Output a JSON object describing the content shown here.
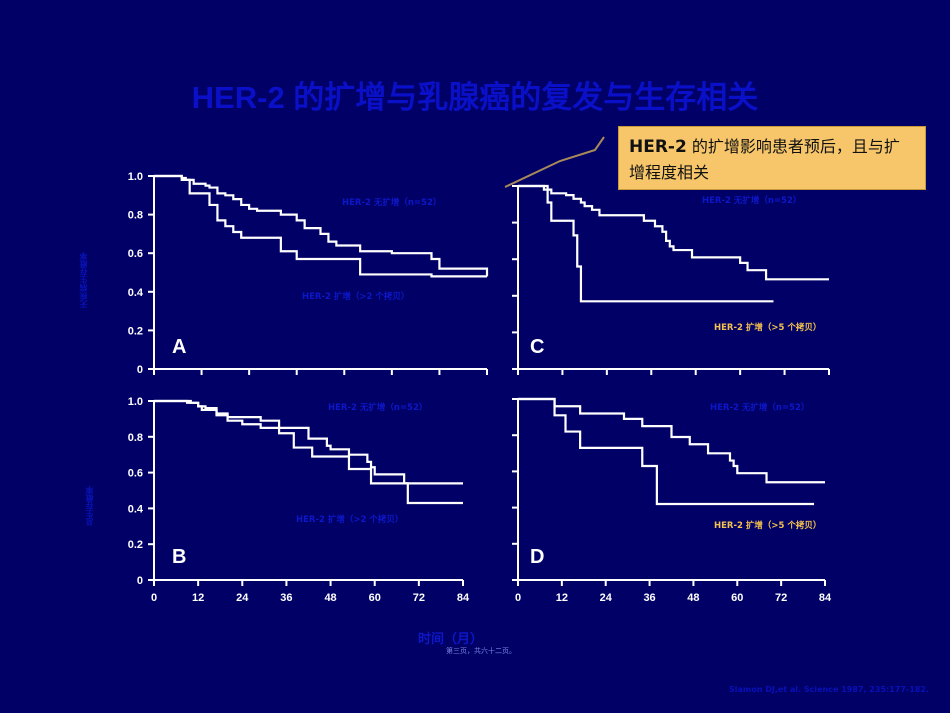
{
  "slide": {
    "title": "HER-2 的扩增与乳腺癌的复发与生存相关",
    "callout": {
      "bold": "HER-2",
      "text": " 的扩增影响患者预后，且与扩增程度相关"
    },
    "ylabel_top": "无疾病生存概率",
    "ylabel_bottom": "总生存概率",
    "xlabel": "时间（月）",
    "page_number": "第三页，共六十二页。",
    "citation": "Slamon DJ,et al. Science 1987, 235:177-182."
  },
  "colors": {
    "background": "#000066",
    "title": "#0a10c8",
    "callout_bg": "#f7c66a",
    "curve": "#ffffff",
    "legend_blue": "#0d17c8",
    "legend_gold": "#f4c24e"
  },
  "chart_data": [
    {
      "type": "line",
      "panel": "A",
      "title": "A",
      "xlabel": "时间（月）",
      "ylabel": "无疾病生存概率",
      "x_ticks": [
        0,
        12,
        24,
        36,
        48,
        60,
        72,
        84
      ],
      "y_ticks": [
        "0",
        "0.2",
        "0.4",
        "0.6",
        "0.8",
        "1.0"
      ],
      "xlim": [
        0,
        84
      ],
      "ylim": [
        0,
        1.0
      ],
      "series": [
        {
          "name": "HER-2 无扩增（n=52）",
          "legend_color": "#0d17c8",
          "x": [
            0,
            7,
            8,
            10,
            13,
            14,
            16,
            18,
            20,
            22,
            24,
            26,
            30,
            32,
            34,
            36,
            38,
            42,
            44,
            46,
            52,
            60,
            70,
            72,
            84
          ],
          "y": [
            1.0,
            0.99,
            0.98,
            0.96,
            0.95,
            0.94,
            0.91,
            0.9,
            0.88,
            0.85,
            0.83,
            0.82,
            0.82,
            0.8,
            0.8,
            0.77,
            0.73,
            0.7,
            0.66,
            0.64,
            0.61,
            0.6,
            0.57,
            0.52,
            0.48
          ]
        },
        {
          "name": "HER-2 扩增（>2 个拷贝）",
          "legend_color": "#0d17c8",
          "x": [
            0,
            7,
            9,
            12,
            14,
            16,
            18,
            20,
            22,
            26,
            32,
            36,
            45,
            52,
            62,
            64,
            70,
            84
          ],
          "y": [
            1.0,
            0.98,
            0.91,
            0.91,
            0.85,
            0.77,
            0.74,
            0.71,
            0.68,
            0.68,
            0.61,
            0.57,
            0.57,
            0.49,
            0.49,
            0.49,
            0.48,
            0.48
          ]
        }
      ]
    },
    {
      "type": "line",
      "panel": "C",
      "title": "C",
      "xlabel": "时间（月）",
      "ylabel": "无疾病生存概率",
      "x_ticks": [
        0,
        12,
        24,
        36,
        48,
        60,
        72,
        84
      ],
      "y_ticks": [
        "0",
        "0.2",
        "0.4",
        "0.6",
        "0.8",
        "1.0"
      ],
      "xlim": [
        0,
        84
      ],
      "ylim": [
        0,
        1.0
      ],
      "series": [
        {
          "name": "HER-2 无扩增（n=52）",
          "legend_color": "#0d17c8",
          "x": [
            0,
            7,
            9,
            13,
            15,
            17,
            18,
            20,
            22,
            26,
            34,
            37,
            39,
            40,
            41,
            42,
            47,
            60,
            62,
            67,
            84
          ],
          "y": [
            1.0,
            0.98,
            0.96,
            0.95,
            0.93,
            0.91,
            0.89,
            0.87,
            0.84,
            0.84,
            0.81,
            0.78,
            0.75,
            0.7,
            0.67,
            0.65,
            0.61,
            0.58,
            0.54,
            0.49,
            0.49
          ]
        },
        {
          "name": "HER-2 扩增（>5 个拷贝）",
          "legend_color": "#f4c24e",
          "x": [
            0,
            7,
            8,
            9,
            15,
            16,
            17,
            69
          ],
          "y": [
            1.0,
            1.0,
            0.91,
            0.81,
            0.73,
            0.56,
            0.37,
            0.37
          ]
        }
      ]
    },
    {
      "type": "line",
      "panel": "B",
      "title": "B",
      "xlabel": "时间（月）",
      "ylabel": "总生存概率",
      "x_ticks": [
        0,
        12,
        24,
        36,
        48,
        60,
        72,
        84
      ],
      "y_ticks": [
        "0",
        "0.2",
        "0.4",
        "0.6",
        "0.8",
        "1.0"
      ],
      "xlim": [
        0,
        84
      ],
      "ylim": [
        0,
        1.0
      ],
      "series": [
        {
          "name": "HER-2 无扩增（n=52）",
          "legend_color": "#0d17c8",
          "x": [
            0,
            10,
            12,
            14,
            17,
            20,
            29,
            34,
            42,
            47,
            48,
            53,
            58,
            59,
            60,
            68,
            84
          ],
          "y": [
            1.0,
            0.99,
            0.97,
            0.96,
            0.93,
            0.91,
            0.89,
            0.85,
            0.79,
            0.75,
            0.73,
            0.7,
            0.66,
            0.63,
            0.59,
            0.54,
            0.54
          ]
        },
        {
          "name": "HER-2 扩增（>2 个拷贝）",
          "legend_color": "#0d17c8",
          "x": [
            0,
            9,
            12,
            13,
            17,
            20,
            24,
            29,
            34,
            38,
            43,
            53,
            59,
            60,
            68,
            69,
            84
          ],
          "y": [
            1.0,
            0.99,
            0.97,
            0.95,
            0.92,
            0.89,
            0.87,
            0.85,
            0.82,
            0.74,
            0.69,
            0.62,
            0.54,
            0.54,
            0.54,
            0.43,
            0.43
          ]
        }
      ]
    },
    {
      "type": "line",
      "panel": "D",
      "title": "D",
      "xlabel": "时间（月）",
      "ylabel": "总生存概率",
      "x_ticks": [
        0,
        12,
        24,
        36,
        48,
        60,
        72,
        84
      ],
      "y_ticks": [
        "0",
        "0.2",
        "0.4",
        "0.6",
        "0.8",
        "1.0"
      ],
      "xlim": [
        0,
        84
      ],
      "ylim": [
        0,
        1.0
      ],
      "series": [
        {
          "name": "HER-2 无扩增（n=52）",
          "legend_color": "#0d17c8",
          "x": [
            0,
            10,
            17,
            29,
            34,
            42,
            47,
            52,
            58,
            59,
            60,
            68,
            84
          ],
          "y": [
            1.0,
            0.96,
            0.92,
            0.89,
            0.85,
            0.79,
            0.75,
            0.7,
            0.66,
            0.63,
            0.59,
            0.54,
            0.54
          ]
        },
        {
          "name": "HER-2 扩增（>5 个拷贝）",
          "legend_color": "#f4c24e",
          "x": [
            0,
            10,
            13,
            17,
            34,
            38,
            81
          ],
          "y": [
            1.0,
            0.91,
            0.82,
            0.73,
            0.63,
            0.42,
            0.42
          ]
        }
      ]
    }
  ]
}
